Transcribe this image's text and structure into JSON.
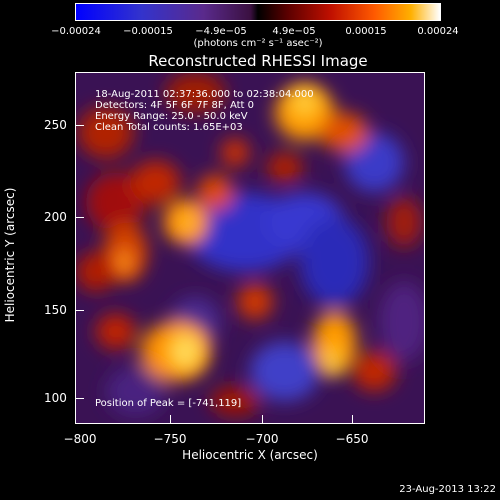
{
  "colorbar": {
    "ticks": [
      "−0.00024",
      "−0.00015",
      "−4.9e−05",
      "4.9e−05",
      "0.00015",
      "0.00024"
    ],
    "units": "(photons cm⁻² s⁻¹ asec⁻²)"
  },
  "title": "Reconstructed RHESSI Image",
  "info": {
    "time_range": "18-Aug-2011 02:37:36.000 to 02:38:04.000",
    "detectors": "Detectors: 4F 5F 6F 7F 8F, Att 0",
    "energy": "Energy Range: 25.0 - 50.0 keV",
    "algorithm": "Clean    Total counts: 1.65E+03",
    "peak": "Position of Peak = [-741,119]"
  },
  "axes": {
    "xlabel": "Heliocentric X (arcsec)",
    "ylabel": "Heliocentric Y (arcsec)",
    "xticks": [
      "−800",
      "−750",
      "−700",
      "−650"
    ],
    "yticks": [
      "100",
      "150",
      "200",
      "250"
    ]
  },
  "footer": {
    "date": "23-Aug-2013 13:22"
  }
}
